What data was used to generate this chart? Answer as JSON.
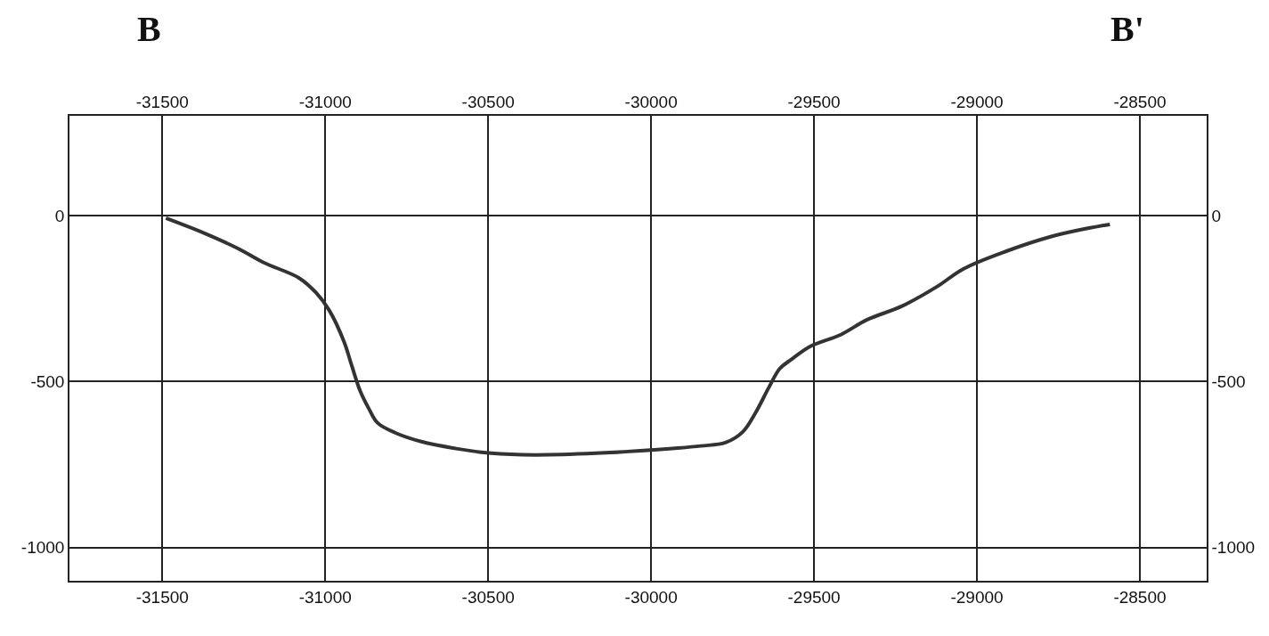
{
  "chart_data": {
    "type": "line",
    "annotations": [
      "B",
      "B'"
    ],
    "x": [
      -31489,
      -31377,
      -31269,
      -31189,
      -31081,
      -31028,
      -30987,
      -30942,
      -30920,
      -30893,
      -30866,
      -30839,
      -30786,
      -30705,
      -30598,
      -30491,
      -30357,
      -30169,
      -29981,
      -29847,
      -29772,
      -29718,
      -29680,
      -29637,
      -29605,
      -29570,
      -29511,
      -29418,
      -29337,
      -29230,
      -29122,
      -29042,
      -28908,
      -28774,
      -28667,
      -28592
    ],
    "series": [
      {
        "color": "#333333",
        "values": [
          -8,
          -51,
          -99,
          -142,
          -188,
          -233,
          -287,
          -381,
          -448,
          -528,
          -582,
          -625,
          -654,
          -681,
          -702,
          -716,
          -721,
          -716,
          -705,
          -694,
          -684,
          -651,
          -595,
          -515,
          -461,
          -434,
          -394,
          -359,
          -314,
          -273,
          -214,
          -161,
          -107,
          -64,
          -40,
          -27
        ]
      }
    ],
    "xlim": [
      -31785,
      -28295
    ],
    "xticks": [
      -31500,
      -31000,
      -30500,
      -30000,
      -29500,
      -29000,
      -28500
    ],
    "x2lim": [
      -31785,
      -28295
    ],
    "x2ticks": [
      -31500,
      -31000,
      -30500,
      -30000,
      -29500,
      -29000,
      -28500
    ],
    "ylim": [
      -1100,
      300
    ],
    "yticks": [
      -1000,
      -500,
      0
    ],
    "y2lim": [
      -1100,
      300
    ],
    "y2ticks": [
      -1000,
      -500,
      0
    ],
    "grid": true,
    "marker": "none",
    "line_style": "solid"
  }
}
